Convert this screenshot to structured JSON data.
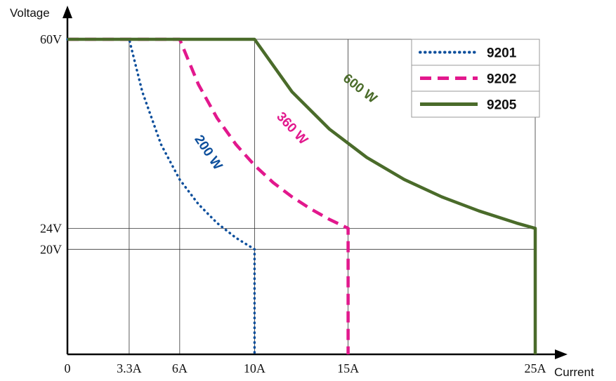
{
  "chart_data": {
    "type": "line",
    "xlabel": "Current",
    "ylabel": "Voltage",
    "xlim": [
      0,
      25
    ],
    "ylim": [
      0,
      60
    ],
    "grid": "partial",
    "x_ticks": [
      {
        "value": 0,
        "label": "0"
      },
      {
        "value": 3.3,
        "label": "3.3A"
      },
      {
        "value": 6,
        "label": "6A"
      },
      {
        "value": 10,
        "label": "10A"
      },
      {
        "value": 15,
        "label": "15A"
      },
      {
        "value": 25,
        "label": "25A"
      }
    ],
    "y_ticks": [
      {
        "value": 20,
        "label": "20V"
      },
      {
        "value": 24,
        "label": "24V"
      },
      {
        "value": 60,
        "label": "60V"
      }
    ],
    "series": [
      {
        "name": "9201",
        "color": "#0d4f9c",
        "style": "dotted",
        "power_w": 200,
        "annotation": "200 W",
        "points": [
          [
            0,
            60
          ],
          [
            3.3,
            60
          ],
          [
            4,
            50
          ],
          [
            5,
            40
          ],
          [
            6,
            33.3
          ],
          [
            7,
            28.6
          ],
          [
            8,
            25
          ],
          [
            9,
            22.2
          ],
          [
            10,
            20
          ],
          [
            10,
            0
          ]
        ]
      },
      {
        "name": "9202",
        "color": "#e2188d",
        "style": "dashed",
        "power_w": 360,
        "annotation": "360 W",
        "points": [
          [
            0,
            60
          ],
          [
            6,
            60
          ],
          [
            7,
            51.4
          ],
          [
            8,
            45
          ],
          [
            9,
            40
          ],
          [
            10,
            36
          ],
          [
            11,
            32.7
          ],
          [
            12,
            30
          ],
          [
            13,
            27.7
          ],
          [
            14,
            25.7
          ],
          [
            15,
            24
          ],
          [
            15,
            0
          ]
        ]
      },
      {
        "name": "9205",
        "color": "#4a6b2a",
        "style": "solid",
        "power_w": 600,
        "annotation": "600 W",
        "points": [
          [
            0,
            60
          ],
          [
            10,
            60
          ],
          [
            12,
            50
          ],
          [
            14,
            42.9
          ],
          [
            16,
            37.5
          ],
          [
            18,
            33.3
          ],
          [
            20,
            30
          ],
          [
            22,
            27.3
          ],
          [
            24,
            25
          ],
          [
            25,
            24
          ],
          [
            25,
            0
          ]
        ]
      }
    ],
    "legend": "top-right"
  }
}
